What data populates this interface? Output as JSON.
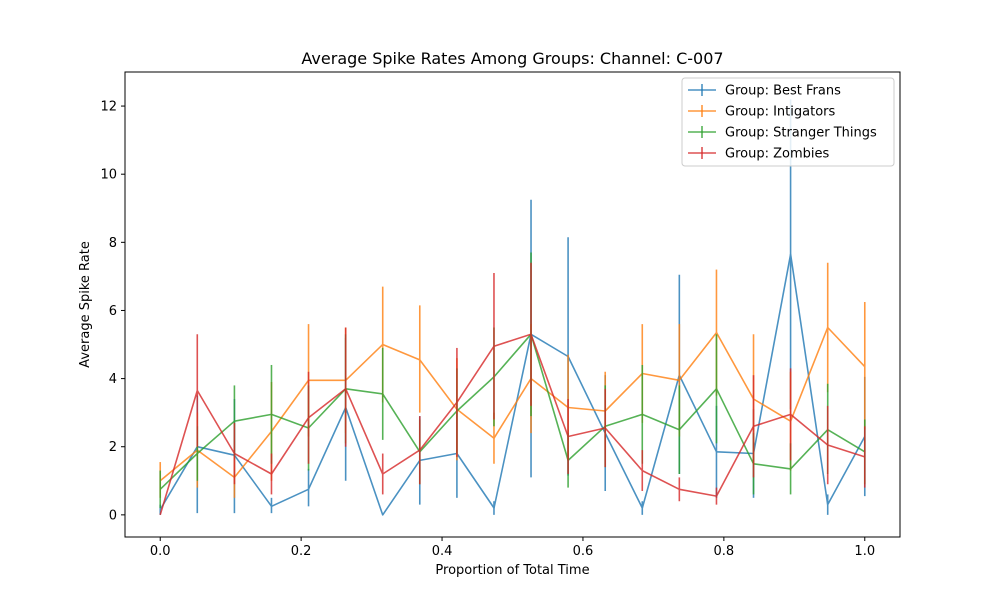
{
  "chart_data": {
    "type": "line",
    "title": "Average Spike Rates Among Groups: Channel: C-007",
    "xlabel": "Proportion of Total Time",
    "ylabel": "Average Spike Rate",
    "xlim": [
      -0.05,
      1.05
    ],
    "ylim": [
      -0.65,
      13.0
    ],
    "xticks": [
      0.0,
      0.2,
      0.4,
      0.6,
      0.8,
      1.0
    ],
    "xtick_labels": [
      "0.0",
      "0.2",
      "0.4",
      "0.6",
      "0.8",
      "1.0"
    ],
    "yticks": [
      0,
      2,
      4,
      6,
      8,
      10,
      12
    ],
    "ytick_labels": [
      "0",
      "2",
      "4",
      "6",
      "8",
      "10",
      "12"
    ],
    "grid": false,
    "legend_position": "top-right",
    "x": [
      0.0,
      0.0526,
      0.1053,
      0.1579,
      0.2105,
      0.2632,
      0.3158,
      0.3684,
      0.4211,
      0.4737,
      0.5263,
      0.5789,
      0.6316,
      0.6842,
      0.7368,
      0.7895,
      0.8421,
      0.8947,
      0.9474,
      1.0
    ],
    "series": [
      {
        "name": "Group: Best Frans",
        "color": "#1f77b4",
        "values": [
          0.15,
          2.0,
          1.75,
          0.25,
          0.75,
          3.15,
          0.0,
          1.6,
          1.8,
          0.2,
          5.3,
          4.65,
          2.4,
          0.2,
          4.1,
          1.85,
          1.8,
          7.65,
          0.3,
          2.3
        ],
        "err_low": [
          0.0,
          0.05,
          0.05,
          0.05,
          0.25,
          1.0,
          0.0,
          0.3,
          0.5,
          0.0,
          1.1,
          1.15,
          0.7,
          0.0,
          1.2,
          0.5,
          0.5,
          3.1,
          0.0,
          0.55
        ],
        "err_high": [
          0.3,
          3.5,
          3.4,
          0.5,
          1.35,
          5.2,
          0.0,
          2.9,
          3.1,
          0.4,
          9.25,
          8.15,
          4.1,
          0.4,
          7.05,
          3.2,
          3.1,
          12.2,
          0.6,
          4.05
        ]
      },
      {
        "name": "Group: Intigators",
        "color": "#ff7f0e",
        "values": [
          1.0,
          1.9,
          1.1,
          2.45,
          3.95,
          3.95,
          5.0,
          4.55,
          3.1,
          2.25,
          4.0,
          3.15,
          3.05,
          4.15,
          3.95,
          5.35,
          3.4,
          2.75,
          5.5,
          4.35
        ],
        "err_low": [
          0.5,
          0.8,
          0.5,
          1.0,
          2.3,
          2.4,
          3.3,
          3.0,
          1.6,
          1.5,
          2.4,
          1.6,
          1.9,
          2.7,
          2.3,
          3.5,
          1.5,
          1.3,
          3.6,
          2.5
        ],
        "err_high": [
          1.55,
          3.0,
          1.7,
          3.9,
          5.6,
          5.5,
          6.7,
          6.15,
          4.6,
          3.0,
          5.6,
          4.7,
          4.2,
          5.6,
          5.6,
          7.2,
          5.3,
          4.2,
          7.4,
          6.25
        ]
      },
      {
        "name": "Group: Stranger Things",
        "color": "#2ca02c",
        "values": [
          0.75,
          1.8,
          2.75,
          2.95,
          2.55,
          3.7,
          3.55,
          1.85,
          3.05,
          4.05,
          5.3,
          1.6,
          2.6,
          2.95,
          2.5,
          3.7,
          1.5,
          1.35,
          2.5,
          1.85
        ],
        "err_low": [
          0.2,
          1.0,
          1.7,
          1.5,
          1.3,
          2.1,
          2.2,
          0.9,
          1.8,
          2.6,
          2.9,
          0.8,
          1.4,
          1.5,
          1.2,
          2.1,
          0.6,
          0.6,
          1.2,
          0.9
        ],
        "err_high": [
          1.3,
          2.6,
          3.8,
          4.4,
          3.8,
          5.3,
          4.9,
          2.8,
          4.3,
          5.5,
          7.7,
          2.4,
          3.8,
          4.4,
          3.8,
          5.3,
          2.4,
          2.1,
          3.85,
          2.8
        ]
      },
      {
        "name": "Group: Zombies",
        "color": "#d62728",
        "values": [
          0.0,
          3.65,
          1.8,
          1.2,
          2.85,
          3.7,
          1.2,
          1.9,
          3.3,
          4.95,
          5.3,
          2.3,
          2.55,
          1.3,
          0.75,
          0.55,
          2.6,
          2.95,
          2.05,
          1.7
        ],
        "err_low": [
          0.0,
          2.0,
          0.9,
          0.6,
          1.5,
          2.0,
          0.6,
          0.9,
          1.7,
          2.8,
          3.2,
          1.2,
          1.4,
          0.7,
          0.4,
          0.3,
          1.1,
          1.6,
          0.9,
          0.8
        ],
        "err_high": [
          0.0,
          5.3,
          2.7,
          1.8,
          4.2,
          5.5,
          1.8,
          2.9,
          4.9,
          7.1,
          7.4,
          3.4,
          3.7,
          1.9,
          1.1,
          0.8,
          4.1,
          4.3,
          3.2,
          2.6
        ]
      }
    ]
  }
}
